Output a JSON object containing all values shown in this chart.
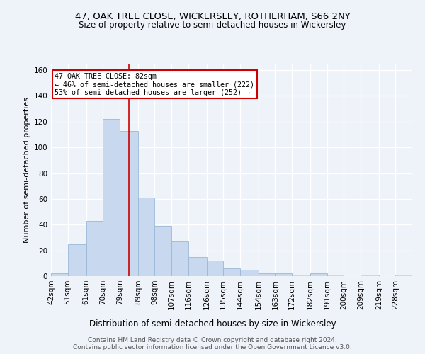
{
  "title": "47, OAK TREE CLOSE, WICKERSLEY, ROTHERHAM, S66 2NY",
  "subtitle": "Size of property relative to semi-detached houses in Wickersley",
  "xlabel": "Distribution of semi-detached houses by size in Wickersley",
  "ylabel": "Number of semi-detached properties",
  "bin_labels": [
    "42sqm",
    "51sqm",
    "61sqm",
    "70sqm",
    "79sqm",
    "89sqm",
    "98sqm",
    "107sqm",
    "116sqm",
    "126sqm",
    "135sqm",
    "144sqm",
    "154sqm",
    "163sqm",
    "172sqm",
    "182sqm",
    "191sqm",
    "200sqm",
    "209sqm",
    "219sqm",
    "228sqm"
  ],
  "bar_values": [
    2,
    25,
    43,
    122,
    113,
    61,
    39,
    27,
    15,
    12,
    6,
    5,
    2,
    2,
    1,
    2,
    1,
    0,
    1,
    0,
    1
  ],
  "bar_color": "#c8d9ef",
  "bar_edge_color": "#9ab8d8",
  "bin_edges": [
    42,
    51,
    61,
    70,
    79,
    89,
    98,
    107,
    116,
    126,
    135,
    144,
    154,
    163,
    172,
    182,
    191,
    200,
    209,
    219,
    228,
    237
  ],
  "vline_x": 84,
  "vline_color": "#cc0000",
  "annotation_line1": "47 OAK TREE CLOSE: 82sqm",
  "annotation_line2": "← 46% of semi-detached houses are smaller (222)",
  "annotation_line3": "53% of semi-detached houses are larger (252) →",
  "annotation_box_color": "#cc0000",
  "ylim": [
    0,
    165
  ],
  "yticks": [
    0,
    20,
    40,
    60,
    80,
    100,
    120,
    140,
    160
  ],
  "footer1": "Contains HM Land Registry data © Crown copyright and database right 2024.",
  "footer2": "Contains public sector information licensed under the Open Government Licence v3.0.",
  "bg_color": "#eef2f9",
  "grid_color": "#ffffff",
  "title_fontsize": 9.5,
  "subtitle_fontsize": 8.5,
  "xlabel_fontsize": 8.5,
  "ylabel_fontsize": 8.0,
  "tick_fontsize": 7.5,
  "footer_fontsize": 6.5
}
